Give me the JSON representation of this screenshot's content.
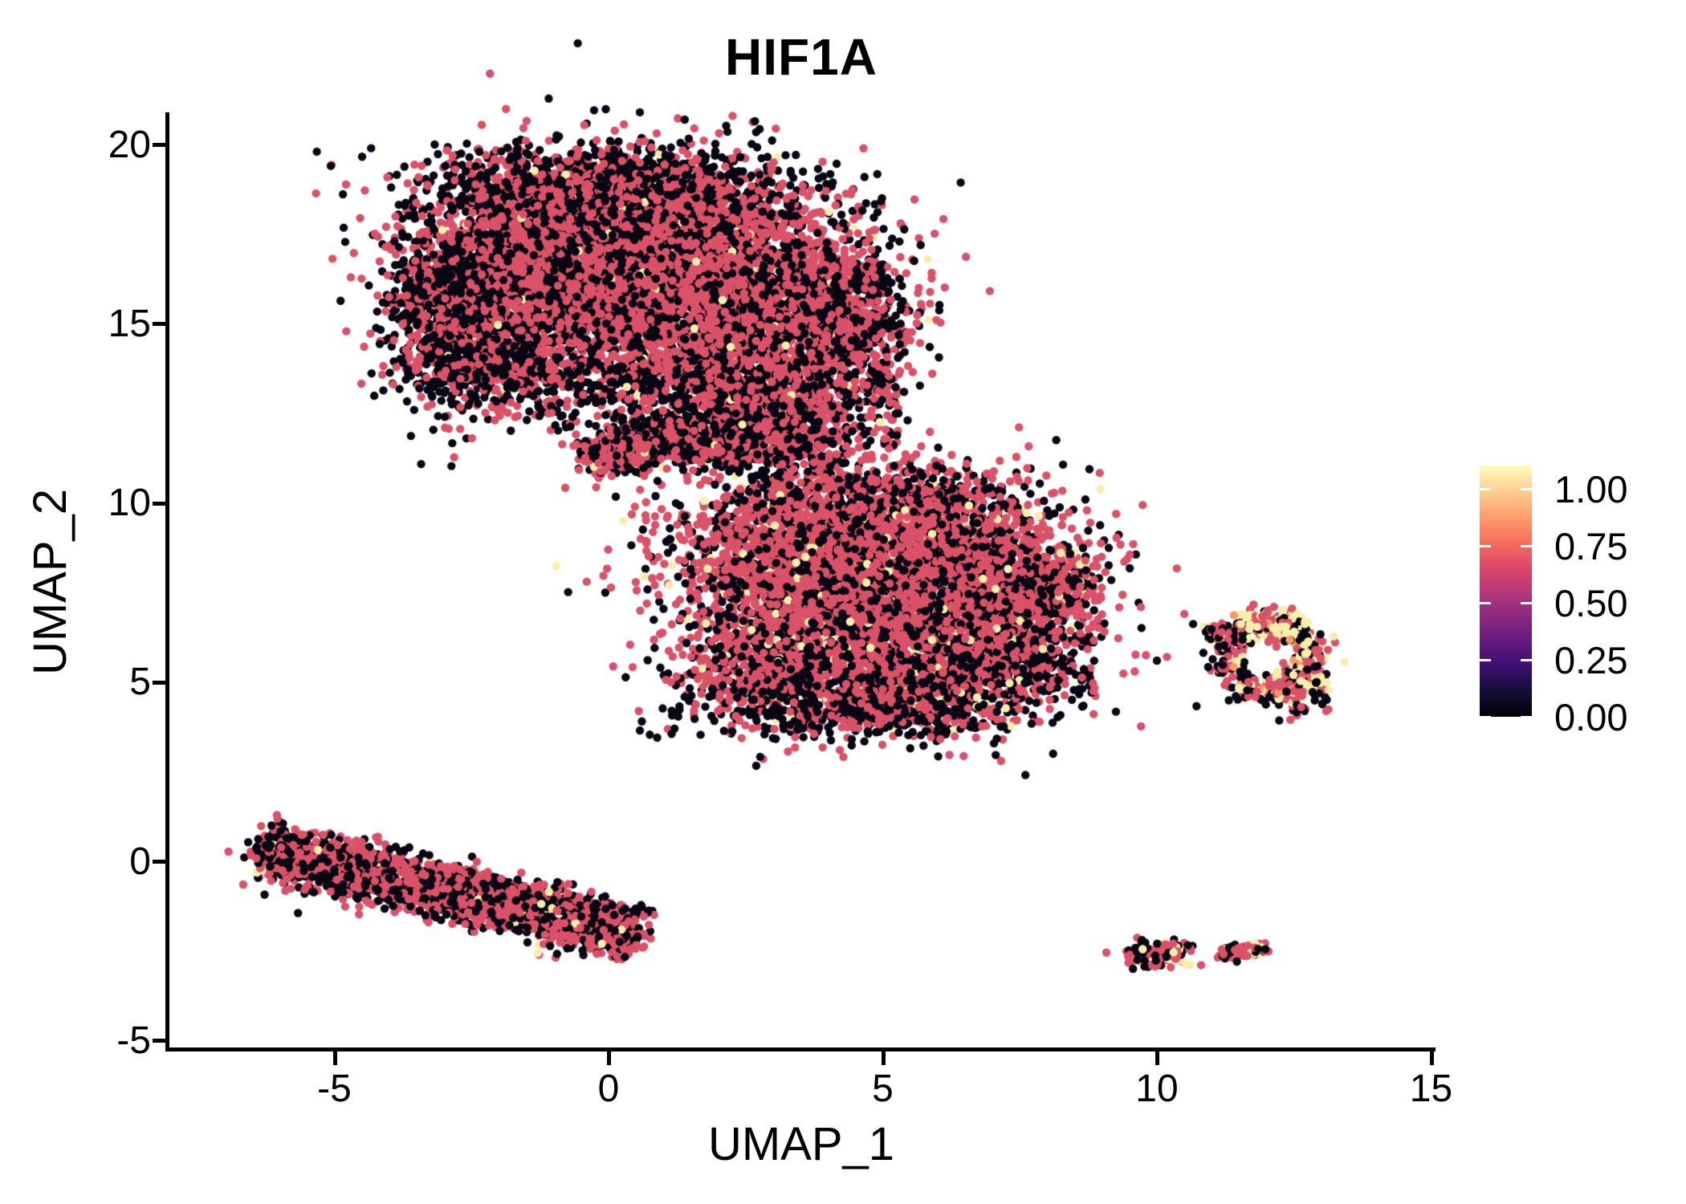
{
  "title": "HIF1A",
  "x_axis": {
    "label": "UMAP_1",
    "tick_labels": [
      "-5",
      "0",
      "5",
      "10",
      "15"
    ],
    "tick_values": [
      -5,
      0,
      5,
      10,
      15
    ]
  },
  "y_axis": {
    "label": "UMAP_2",
    "tick_labels": [
      "20",
      "15",
      "10",
      "5",
      "0",
      "-5"
    ],
    "tick_values": [
      20,
      15,
      10,
      5,
      0,
      -5
    ]
  },
  "legend": {
    "labels": [
      "1.00",
      "0.75",
      "0.50",
      "0.25",
      "0.00"
    ],
    "gradient_bottom_to_top": [
      "#000004",
      "#140e36",
      "#3b0f70",
      "#641a80",
      "#8c2981",
      "#b73779",
      "#de4968",
      "#f7705c",
      "#fe9f6d",
      "#fecf92",
      "#fcfdbf"
    ]
  },
  "colors": {
    "rose": "#DA5268",
    "black": "#0A0714",
    "cream": "#F7EEAB",
    "orange": "#F79A6A",
    "axis": "#000000",
    "background": "#FFFFFF"
  },
  "chart_data": {
    "type": "scatter",
    "title": "HIF1A",
    "xlabel": "UMAP_1",
    "ylabel": "UMAP_2",
    "xlim": [
      -8.0,
      15.1
    ],
    "ylim": [
      -5.1,
      21.1
    ],
    "grid": false,
    "legend_position": "right",
    "colormap": "magma",
    "colorbar_value_range": [
      0.0,
      1.1
    ],
    "colorbar_tick_values": [
      1.0,
      0.75,
      0.5,
      0.25,
      0.0
    ],
    "point_radius_px": 5.2,
    "description": "UMAP feature plot of HIF1A expression; most cells rose (~0.7), many near-zero (black), sparse maximal (cream); right-side ring cluster and bottom-right tiny clusters enriched for high expression",
    "clusters": [
      {
        "name": "top-left-lobe",
        "shape": "gauss",
        "cx": -2.5,
        "cy": 15.6,
        "sx": 0.75,
        "sy": 1.3,
        "n": 850,
        "mix": {
          "rose": 0.45,
          "black": 0.54,
          "cream": 0.01
        }
      },
      {
        "name": "top-upper-left",
        "shape": "gauss",
        "cx": -1.3,
        "cy": 16.9,
        "sx": 1.0,
        "sy": 1.4,
        "n": 1400,
        "mix": {
          "rose": 0.52,
          "black": 0.465,
          "cream": 0.015
        }
      },
      {
        "name": "top-upper-mid",
        "shape": "gauss",
        "cx": 0.2,
        "cy": 17.3,
        "sx": 1.1,
        "sy": 1.2,
        "n": 1500,
        "mix": {
          "rose": 0.52,
          "black": 0.465,
          "cream": 0.015
        }
      },
      {
        "name": "top-mid-right",
        "shape": "gauss",
        "cx": 1.8,
        "cy": 16.4,
        "sx": 1.1,
        "sy": 1.4,
        "n": 1400,
        "mix": {
          "rose": 0.52,
          "black": 0.465,
          "cream": 0.015
        }
      },
      {
        "name": "top-right-lobe",
        "shape": "gauss",
        "cx": 3.3,
        "cy": 15.4,
        "sx": 1.1,
        "sy": 1.5,
        "n": 1300,
        "mix": {
          "rose": 0.55,
          "black": 0.43,
          "cream": 0.02
        }
      },
      {
        "name": "top-right-edge",
        "shape": "gauss",
        "cx": 4.4,
        "cy": 14.9,
        "sx": 0.5,
        "sy": 1.0,
        "n": 420,
        "mix": {
          "rose": 0.6,
          "black": 0.39,
          "cream": 0.01
        }
      },
      {
        "name": "top-bottomleft-lobe",
        "shape": "gauss",
        "cx": -1.9,
        "cy": 13.9,
        "sx": 0.8,
        "sy": 0.6,
        "n": 330,
        "mix": {
          "rose": 0.4,
          "black": 0.59,
          "cream": 0.01
        }
      },
      {
        "name": "top-lower-mid",
        "shape": "gauss",
        "cx": 0.6,
        "cy": 14.6,
        "sx": 1.1,
        "sy": 0.8,
        "n": 550,
        "mix": {
          "rose": 0.52,
          "black": 0.465,
          "cream": 0.015
        }
      },
      {
        "name": "top-lower-ext",
        "shape": "gauss",
        "cx": 2.2,
        "cy": 13.4,
        "sx": 0.9,
        "sy": 0.8,
        "n": 480,
        "mix": {
          "rose": 0.52,
          "black": 0.465,
          "cream": 0.015
        }
      },
      {
        "name": "top-neck",
        "shape": "gauss",
        "cx": 3.0,
        "cy": 12.3,
        "sx": 0.7,
        "sy": 0.6,
        "n": 330,
        "mix": {
          "rose": 0.5,
          "black": 0.48,
          "cream": 0.02
        }
      },
      {
        "name": "top-black-top-fringe",
        "shape": "gauss",
        "cx": -0.2,
        "cy": 18.85,
        "sx": 1.9,
        "sy": 0.55,
        "n": 650,
        "mix": {
          "rose": 0.22,
          "black": 0.775,
          "cream": 0.005
        }
      },
      {
        "name": "top-black-left-fringe",
        "shape": "gauss",
        "cx": -3.05,
        "cy": 15.2,
        "sx": 0.5,
        "sy": 1.3,
        "n": 400,
        "mix": {
          "rose": 0.3,
          "black": 0.695,
          "cream": 0.005
        }
      },
      {
        "name": "top-rose-core",
        "shape": "gauss",
        "cx": 0.8,
        "cy": 16.3,
        "sx": 1.7,
        "sy": 1.3,
        "n": 1150,
        "mix": {
          "rose": 0.84,
          "black": 0.14,
          "cream": 0.02
        }
      },
      {
        "name": "below-top-sparse",
        "shape": "box",
        "x1": -3.2,
        "y1": 12.4,
        "x2": 1.2,
        "y2": 14.0,
        "n": 130,
        "mix": {
          "rose": 0.3,
          "black": 0.7
        }
      },
      {
        "name": "wedge-tip",
        "shape": "gauss",
        "cx": 0.0,
        "cy": 11.35,
        "sx": 0.35,
        "sy": 0.25,
        "n": 140,
        "mix": {
          "rose": 0.55,
          "black": 0.43,
          "cream": 0.02
        }
      },
      {
        "name": "wedge-mid",
        "shape": "gauss",
        "cx": 0.8,
        "cy": 11.5,
        "sx": 0.5,
        "sy": 0.3,
        "n": 210,
        "mix": {
          "rose": 0.55,
          "black": 0.43,
          "cream": 0.02
        }
      },
      {
        "name": "wedge-right",
        "shape": "gauss",
        "cx": 1.6,
        "cy": 11.65,
        "sx": 0.5,
        "sy": 0.35,
        "n": 210,
        "mix": {
          "rose": 0.55,
          "black": 0.43,
          "cream": 0.02
        }
      },
      {
        "name": "wedge-black-fringe",
        "shape": "gauss",
        "cx": 0.9,
        "cy": 12.1,
        "sx": 0.9,
        "sy": 0.35,
        "n": 190,
        "mix": {
          "rose": 0.3,
          "black": 0.69,
          "cream": 0.01
        }
      },
      {
        "name": "bridge-sparse",
        "shape": "box",
        "x1": 1.9,
        "y1": 11.0,
        "x2": 4.3,
        "y2": 13.3,
        "n": 300,
        "mix": {
          "rose": 0.45,
          "black": 0.54,
          "cream": 0.01
        }
      },
      {
        "name": "bridge-sparse-right",
        "shape": "box",
        "x1": 4.3,
        "y1": 11.5,
        "x2": 5.3,
        "y2": 13.6,
        "n": 90,
        "mix": {
          "rose": 0.45,
          "black": 0.55
        }
      },
      {
        "name": "central-upper-left",
        "shape": "gauss",
        "cx": 3.4,
        "cy": 8.6,
        "sx": 1.1,
        "sy": 1.1,
        "n": 1000,
        "mix": {
          "rose": 0.56,
          "black": 0.4,
          "cream": 0.04
        }
      },
      {
        "name": "central-upper-right",
        "shape": "gauss",
        "cx": 5.3,
        "cy": 9.0,
        "sx": 1.4,
        "sy": 1.0,
        "n": 1300,
        "mix": {
          "rose": 0.56,
          "black": 0.4,
          "cream": 0.04
        }
      },
      {
        "name": "central-lower-left",
        "shape": "gauss",
        "cx": 4.3,
        "cy": 6.6,
        "sx": 1.4,
        "sy": 1.2,
        "n": 1300,
        "mix": {
          "rose": 0.56,
          "black": 0.4,
          "cream": 0.04
        }
      },
      {
        "name": "central-lower-right",
        "shape": "gauss",
        "cx": 6.5,
        "cy": 7.1,
        "sx": 1.2,
        "sy": 1.1,
        "n": 1000,
        "mix": {
          "rose": 0.56,
          "black": 0.4,
          "cream": 0.04
        }
      },
      {
        "name": "central-left-bump",
        "shape": "gauss",
        "cx": 2.9,
        "cy": 5.4,
        "sx": 0.8,
        "sy": 0.8,
        "n": 450,
        "mix": {
          "rose": 0.5,
          "black": 0.46,
          "cream": 0.04
        }
      },
      {
        "name": "central-bottom",
        "shape": "gauss",
        "cx": 5.5,
        "cy": 5.0,
        "sx": 1.2,
        "sy": 0.75,
        "n": 500,
        "mix": {
          "rose": 0.56,
          "black": 0.4,
          "cream": 0.04
        }
      },
      {
        "name": "central-beak",
        "shape": "gauss",
        "cx": 7.9,
        "cy": 7.75,
        "sx": 0.5,
        "sy": 0.42,
        "n": 240,
        "mix": {
          "rose": 0.55,
          "black": 0.42,
          "cream": 0.03
        }
      },
      {
        "name": "central-beak-tip",
        "shape": "gauss",
        "cx": 8.45,
        "cy": 7.97,
        "sx": 0.22,
        "sy": 0.18,
        "n": 60,
        "mix": {
          "rose": 0.6,
          "black": 0.38,
          "cream": 0.02
        }
      },
      {
        "name": "central-rose-core",
        "shape": "gauss",
        "cx": 4.9,
        "cy": 8.3,
        "sx": 1.7,
        "sy": 1.1,
        "n": 1000,
        "mix": {
          "rose": 0.86,
          "black": 0.1,
          "cream": 0.04
        }
      },
      {
        "name": "central-black-bottom",
        "shape": "gauss",
        "cx": 4.7,
        "cy": 4.35,
        "sx": 1.6,
        "sy": 0.5,
        "n": 600,
        "mix": {
          "rose": 0.26,
          "black": 0.72,
          "cream": 0.02
        }
      },
      {
        "name": "central-black-right-low",
        "shape": "gauss",
        "cx": 6.8,
        "cy": 5.6,
        "sx": 0.8,
        "sy": 0.6,
        "n": 260,
        "mix": {
          "rose": 0.38,
          "black": 0.6,
          "cream": 0.02
        }
      },
      {
        "name": "central-top-fringe",
        "shape": "gauss",
        "cx": 4.4,
        "cy": 10.35,
        "sx": 1.5,
        "sy": 0.5,
        "n": 280,
        "mix": {
          "rose": 0.42,
          "black": 0.57,
          "cream": 0.01
        }
      },
      {
        "name": "central-right-trail",
        "shape": "gauss",
        "cx": 7.65,
        "cy": 6.1,
        "sx": 0.5,
        "sy": 0.8,
        "n": 140,
        "mix": {
          "rose": 0.35,
          "black": 0.63,
          "cream": 0.02
        }
      },
      {
        "name": "central-right-strays",
        "shape": "box",
        "x1": 7.6,
        "y1": 4.4,
        "x2": 8.9,
        "y2": 6.4,
        "n": 45,
        "mix": {
          "rose": 0.35,
          "black": 0.65
        }
      },
      {
        "name": "bottomleft-strip",
        "shape": "strip",
        "x1": -6.15,
        "y1": 0.25,
        "x2": 0.45,
        "y2": -2.0,
        "sigma": 0.38,
        "n": 2300,
        "mix": {
          "rose": 0.53,
          "black": 0.45,
          "cream": 0.02
        }
      },
      {
        "name": "bottomleft-strip-leftcap",
        "shape": "gauss",
        "cx": -6.1,
        "cy": 0.2,
        "sx": 0.25,
        "sy": 0.32,
        "n": 90,
        "mix": {
          "rose": 0.5,
          "black": 0.49,
          "cream": 0.01
        }
      },
      {
        "name": "bottomleft-strip-rightcap",
        "shape": "gauss",
        "cx": 0.1,
        "cy": -1.75,
        "sx": 0.3,
        "sy": 0.25,
        "n": 90,
        "mix": {
          "rose": 0.55,
          "black": 0.44,
          "cream": 0.01
        }
      },
      {
        "name": "right-ring",
        "shape": "ring",
        "cx": 12.03,
        "cy": 5.7,
        "rmean": 0.78,
        "rsd": 0.17,
        "yscale": 1.22,
        "n": 380,
        "mix": {
          "rose": 0.4,
          "black": 0.32,
          "cream": 0.23,
          "orange": 0.05
        }
      },
      {
        "name": "right-ring-cream-top",
        "shape": "gauss",
        "cx": 12.15,
        "cy": 6.6,
        "sx": 0.38,
        "sy": 0.22,
        "n": 110,
        "mix": {
          "rose": 0.3,
          "black": 0.15,
          "cream": 0.5,
          "orange": 0.05
        }
      },
      {
        "name": "right-ring-bottom-lobe",
        "shape": "gauss",
        "cx": 12.6,
        "cy": 4.8,
        "sx": 0.3,
        "sy": 0.32,
        "n": 130,
        "mix": {
          "rose": 0.4,
          "black": 0.28,
          "cream": 0.3,
          "orange": 0.02
        }
      },
      {
        "name": "right-ring-left-tail",
        "shape": "strip",
        "x1": 10.85,
        "y1": 6.5,
        "x2": 11.6,
        "y2": 6.2,
        "sigma": 0.12,
        "n": 80,
        "mix": {
          "rose": 0.45,
          "black": 0.4,
          "cream": 0.15
        }
      },
      {
        "name": "tiny-bottom-a",
        "shape": "gauss",
        "cx": 10.0,
        "cy": -2.55,
        "sx": 0.3,
        "sy": 0.22,
        "n": 130,
        "mix": {
          "rose": 0.56,
          "black": 0.32,
          "cream": 0.12
        }
      },
      {
        "name": "tiny-bottom-b-left",
        "shape": "strip",
        "x1": 11.12,
        "y1": -2.6,
        "x2": 11.7,
        "y2": -2.5,
        "sigma": 0.1,
        "n": 70,
        "mix": {
          "rose": 0.5,
          "black": 0.4,
          "cream": 0.1
        }
      },
      {
        "name": "tiny-bottom-b-right",
        "shape": "strip",
        "x1": 11.7,
        "y1": -2.45,
        "x2": 12.0,
        "y2": -2.42,
        "sigma": 0.08,
        "n": 45,
        "mix": {
          "rose": 0.28,
          "black": 0.12,
          "cream": 0.6
        }
      }
    ],
    "singles": [
      {
        "x": 6.7,
        "y": 3.45,
        "color": "rose"
      },
      {
        "x": 5.9,
        "y": 3.62,
        "color": "rose"
      },
      {
        "x": 10.62,
        "y": -2.5,
        "color": "rose"
      },
      {
        "x": 10.5,
        "y": 6.9,
        "color": "rose"
      },
      {
        "x": 10.66,
        "y": 6.62,
        "color": "black"
      },
      {
        "x": 9.8,
        "y": 5.75,
        "color": "rose"
      },
      {
        "x": 10.0,
        "y": 5.6,
        "color": "black"
      }
    ]
  }
}
